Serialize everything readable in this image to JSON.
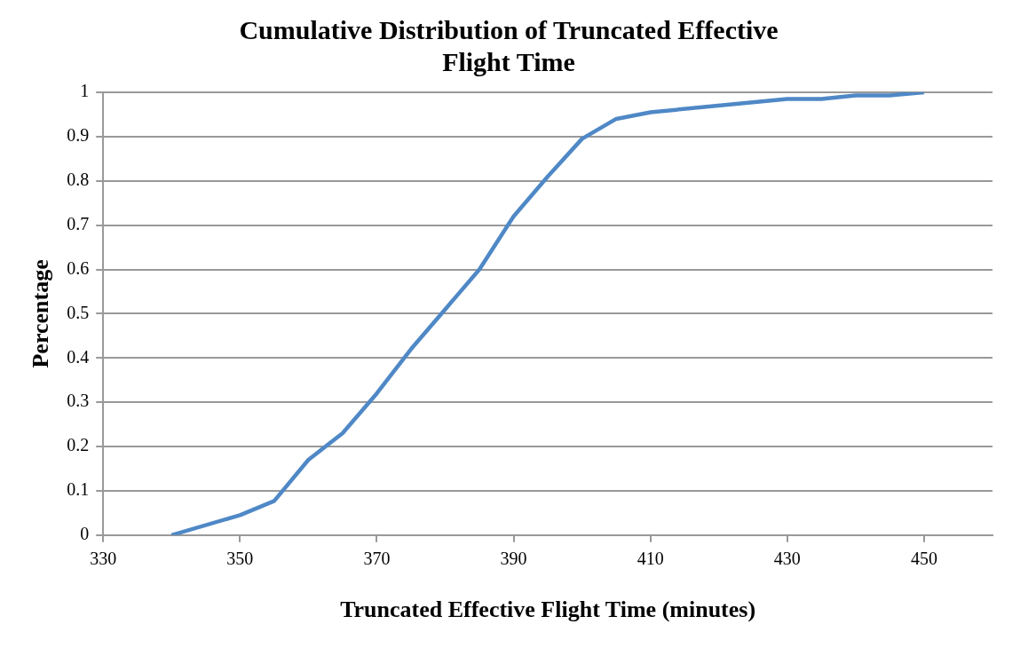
{
  "chart_data": {
    "type": "line",
    "title": "Cumulative Distribution of Truncated Effective Flight Time",
    "xlabel": "Truncated Effective Flight Time (minutes)",
    "ylabel": "Percentage",
    "x": [
      340,
      350,
      355,
      360,
      365,
      370,
      375,
      380,
      385,
      390,
      395,
      400,
      405,
      410,
      430,
      435,
      440,
      445,
      450
    ],
    "series": [
      {
        "color": "#4f88c6",
        "values": [
          0,
          0.045,
          0.077,
          0.17,
          0.23,
          0.32,
          0.42,
          0.51,
          0.6,
          0.72,
          0.81,
          0.895,
          0.94,
          0.955,
          0.985,
          0.985,
          0.993,
          0.993,
          1.0
        ]
      }
    ],
    "xlim": [
      330,
      460
    ],
    "xticks": [
      330,
      350,
      370,
      390,
      410,
      430,
      450
    ],
    "ylim": [
      0,
      1
    ],
    "yticks": [
      0,
      0.1,
      0.2,
      0.3,
      0.4,
      0.5,
      0.6,
      0.7,
      0.8,
      0.9,
      1
    ],
    "grid": "y",
    "legend": false,
    "marker": "none",
    "line_style": "solid"
  }
}
